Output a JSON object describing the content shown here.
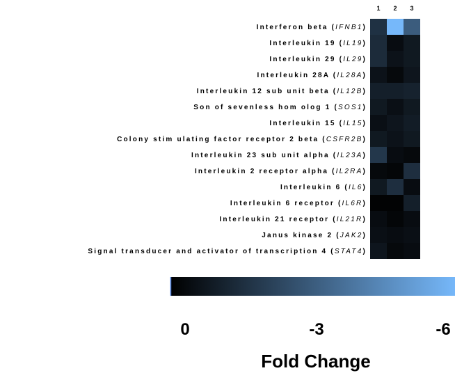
{
  "chart_data": {
    "type": "heatmap",
    "columns": [
      "1",
      "2",
      "3"
    ],
    "rows": [
      {
        "name": "Interferon beta",
        "gene": "IFNB1",
        "values": [
          -1.6,
          -6.0,
          -3.0
        ]
      },
      {
        "name": "Interleukin 19",
        "gene": "IL19",
        "values": [
          -1.4,
          -0.4,
          -0.8
        ]
      },
      {
        "name": "Interleukin 29",
        "gene": "IL29",
        "values": [
          -1.4,
          -0.6,
          -0.8
        ]
      },
      {
        "name": "Interleukin 28A",
        "gene": "IL28A",
        "values": [
          -0.6,
          -0.3,
          -0.7
        ]
      },
      {
        "name": "Interleukin 12 sub unit beta",
        "gene": "IL12B",
        "values": [
          -1.0,
          -1.0,
          -1.1
        ]
      },
      {
        "name": "Son of sevenless hom olog 1",
        "gene": "SOS1",
        "values": [
          -0.8,
          -0.5,
          -0.8
        ]
      },
      {
        "name": "Interleukin 15",
        "gene": "IL15",
        "values": [
          -0.5,
          -0.7,
          -0.9
        ]
      },
      {
        "name": "Colony stim ulating factor receptor 2 beta",
        "gene": "CSFR2B",
        "values": [
          -0.8,
          -0.6,
          -0.8
        ]
      },
      {
        "name": "Interleukin 23 sub unit alpha",
        "gene": "IL23A",
        "values": [
          -1.8,
          -0.4,
          -0.3
        ]
      },
      {
        "name": "Interleukin 2 receptor alpha",
        "gene": "IL2RA",
        "values": [
          -0.3,
          -0.2,
          -1.5
        ]
      },
      {
        "name": "Interleukin 6",
        "gene": "IL6",
        "values": [
          -0.8,
          -1.5,
          -0.4
        ]
      },
      {
        "name": "Interleukin 6 receptor",
        "gene": "IL6R",
        "values": [
          -0.1,
          -0.1,
          -1.0
        ]
      },
      {
        "name": "Interleukin 21 receptor",
        "gene": "IL21R",
        "values": [
          -0.4,
          -0.2,
          -0.4
        ]
      },
      {
        "name": "Janus kinase 2",
        "gene": "JAK2",
        "values": [
          -0.5,
          -0.4,
          -0.5
        ]
      },
      {
        "name": "Signal transducer and activator of transcription 4",
        "gene": "STAT4",
        "values": [
          -0.7,
          -0.3,
          -0.4
        ]
      }
    ],
    "colorbar": {
      "range": [
        0,
        -6
      ],
      "colors": [
        "#000000",
        "#76B8FA"
      ],
      "ticks": [
        "0",
        "-3",
        "-6"
      ],
      "title": "Fold Change"
    }
  }
}
